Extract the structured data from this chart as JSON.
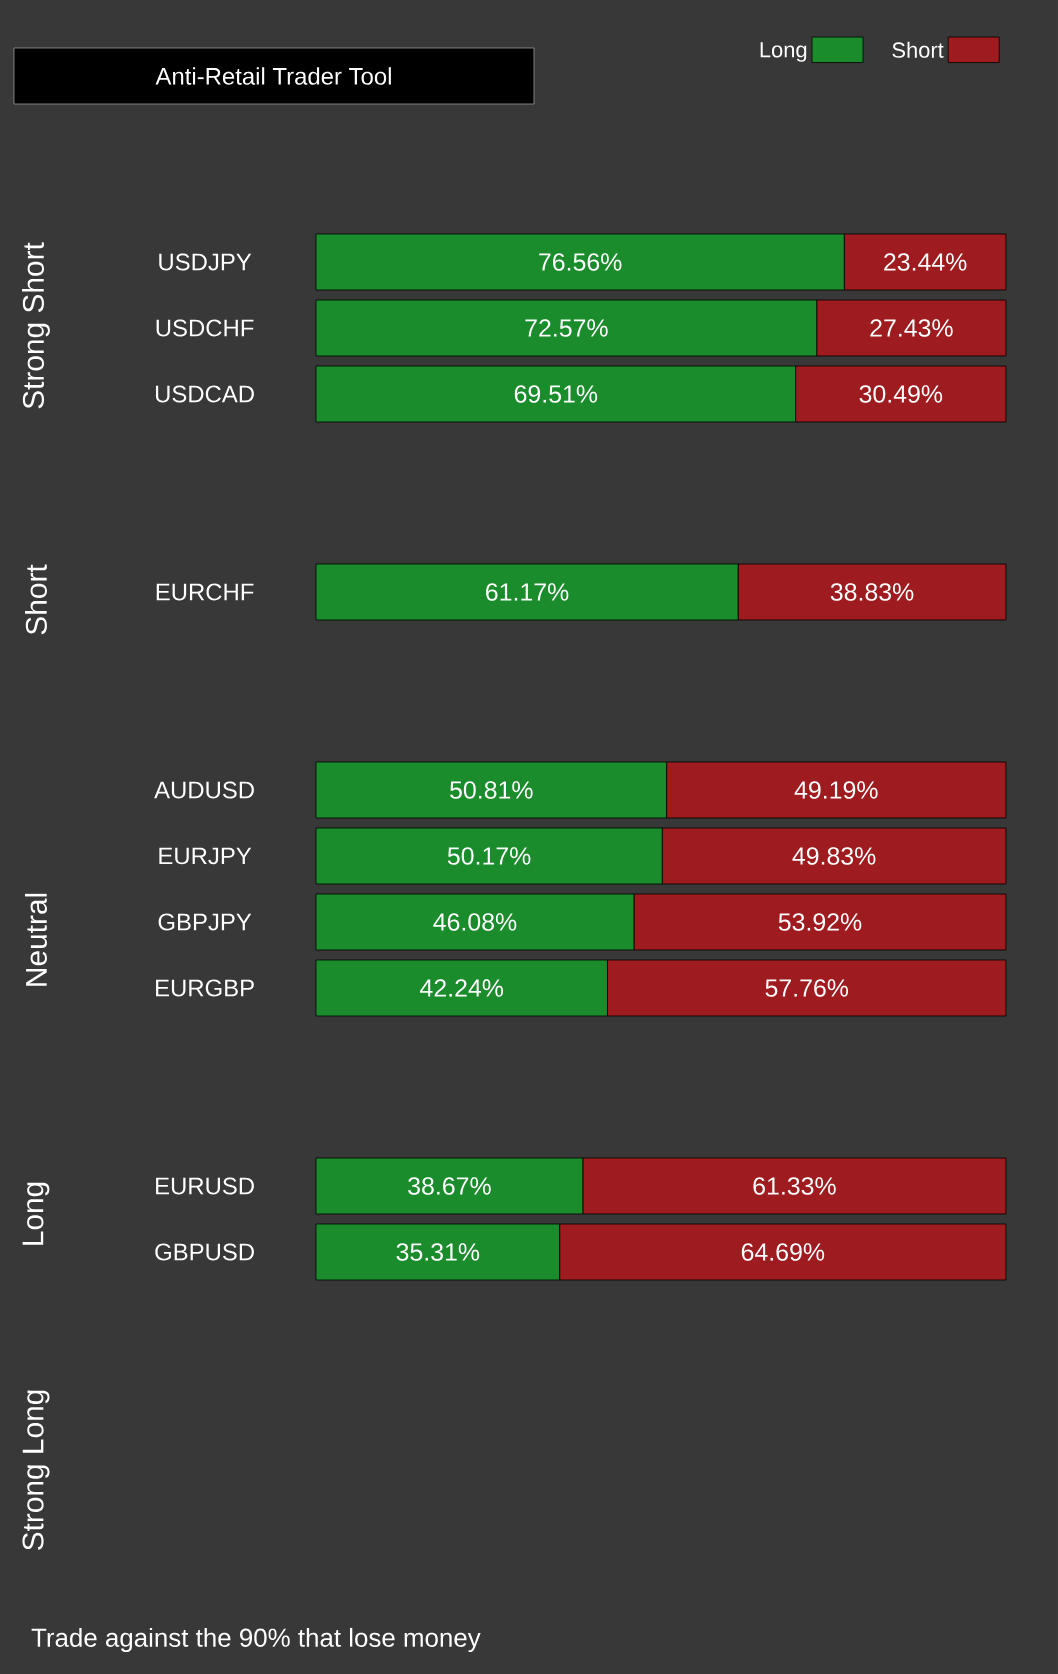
{
  "chart_data": {
    "type": "bar",
    "title": "Anti-Retail Trader Tool",
    "orientation": "horizontal",
    "stacked": true,
    "legend": "top right",
    "tick_labels": "y",
    "categories": [
      "USDJPY",
      "USDCHF",
      "USDCAD",
      null,
      null,
      "EURCHF",
      null,
      null,
      "AUDUSD",
      "EURJPY",
      "GBPJPY",
      "EURGBP",
      null,
      null,
      "EURUSD",
      "GBPUSD"
    ],
    "series": [
      {
        "name": "Long",
        "color": "#1b8c2c",
        "values": [
          76.56,
          72.57,
          69.51,
          null,
          null,
          61.17,
          null,
          null,
          50.81,
          50.17,
          46.08,
          42.24,
          null,
          null,
          38.67,
          35.31
        ],
        "value_labels": [
          "76.56%",
          "72.57%",
          "69.51%",
          null,
          null,
          "61.17%",
          null,
          null,
          "50.81%",
          "50.17%",
          "46.08%",
          "42.24%",
          null,
          null,
          "38.67%",
          "35.31%"
        ]
      },
      {
        "name": "Short",
        "color": "#9e1c1f",
        "values": [
          23.44,
          27.43,
          30.49,
          null,
          null,
          38.83,
          null,
          null,
          49.19,
          49.83,
          53.92,
          57.76,
          null,
          null,
          61.33,
          64.69
        ],
        "value_labels": [
          "23.44%",
          "27.43%",
          "30.49%",
          null,
          null,
          "38.83%",
          null,
          null,
          "49.19%",
          "49.83%",
          "53.92%",
          "57.76%",
          null,
          null,
          "61.33%",
          "64.69%"
        ]
      }
    ],
    "annotations": [
      "Strong Short",
      "Short",
      "Neutral",
      "Long",
      "Strong Long",
      "Trade against the 90% that lose money"
    ]
  }
}
